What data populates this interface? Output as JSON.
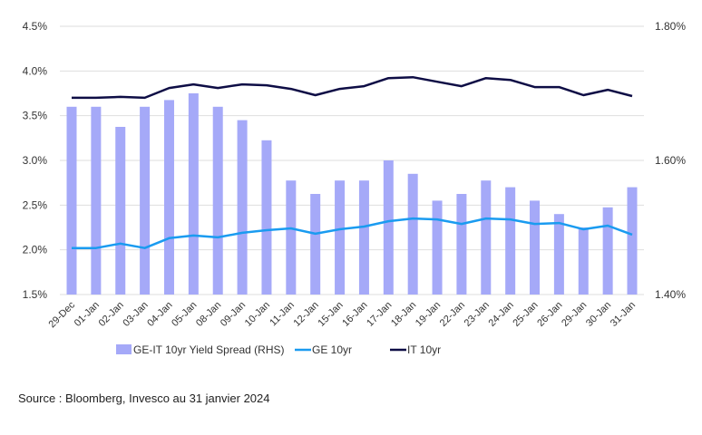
{
  "chart_data": {
    "type": "bar+line",
    "categories": [
      "29-Dec",
      "01-Jan",
      "02-Jan",
      "03-Jan",
      "04-Jan",
      "05-Jan",
      "08-Jan",
      "09-Jan",
      "10-Jan",
      "11-Jan",
      "12-Jan",
      "15-Jan",
      "16-Jan",
      "17-Jan",
      "18-Jan",
      "19-Jan",
      "22-Jan",
      "23-Jan",
      "24-Jan",
      "25-Jan",
      "26-Jan",
      "29-Jan",
      "30-Jan",
      "31-Jan"
    ],
    "series": [
      {
        "name": "GE-IT 10yr Yield Spread (RHS)",
        "type": "bar",
        "axis": "right",
        "color": "#a5a9f8",
        "values": [
          1.68,
          1.68,
          1.65,
          1.68,
          1.69,
          1.7,
          1.68,
          1.66,
          1.63,
          1.57,
          1.55,
          1.57,
          1.57,
          1.6,
          1.58,
          1.54,
          1.55,
          1.57,
          1.56,
          1.54,
          1.52,
          1.5,
          1.53,
          1.56
        ]
      },
      {
        "name": "GE 10yr",
        "type": "line",
        "axis": "left",
        "color": "#1a9bf0",
        "values": [
          2.02,
          2.02,
          2.07,
          2.02,
          2.13,
          2.16,
          2.14,
          2.19,
          2.22,
          2.24,
          2.18,
          2.23,
          2.26,
          2.32,
          2.35,
          2.34,
          2.29,
          2.35,
          2.34,
          2.29,
          2.3,
          2.23,
          2.27,
          2.17
        ]
      },
      {
        "name": "IT 10yr",
        "type": "line",
        "axis": "left",
        "color": "#0e0d45",
        "values": [
          3.7,
          3.7,
          3.71,
          3.7,
          3.81,
          3.85,
          3.81,
          3.85,
          3.84,
          3.8,
          3.73,
          3.8,
          3.83,
          3.92,
          3.93,
          3.88,
          3.83,
          3.92,
          3.9,
          3.82,
          3.82,
          3.73,
          3.79,
          3.72
        ]
      }
    ],
    "ylim_left": [
      1.5,
      4.5
    ],
    "ylim_right": [
      1.4,
      1.8
    ],
    "left_ticks": [
      "1.5%",
      "2.0%",
      "2.5%",
      "3.0%",
      "3.5%",
      "4.0%",
      "4.5%"
    ],
    "right_ticks": [
      "1.40%",
      "1.60%",
      "1.80%"
    ],
    "grid": true,
    "legend_position": "bottom"
  },
  "source": "Source : Bloomberg, Invesco au 31 janvier 2024"
}
